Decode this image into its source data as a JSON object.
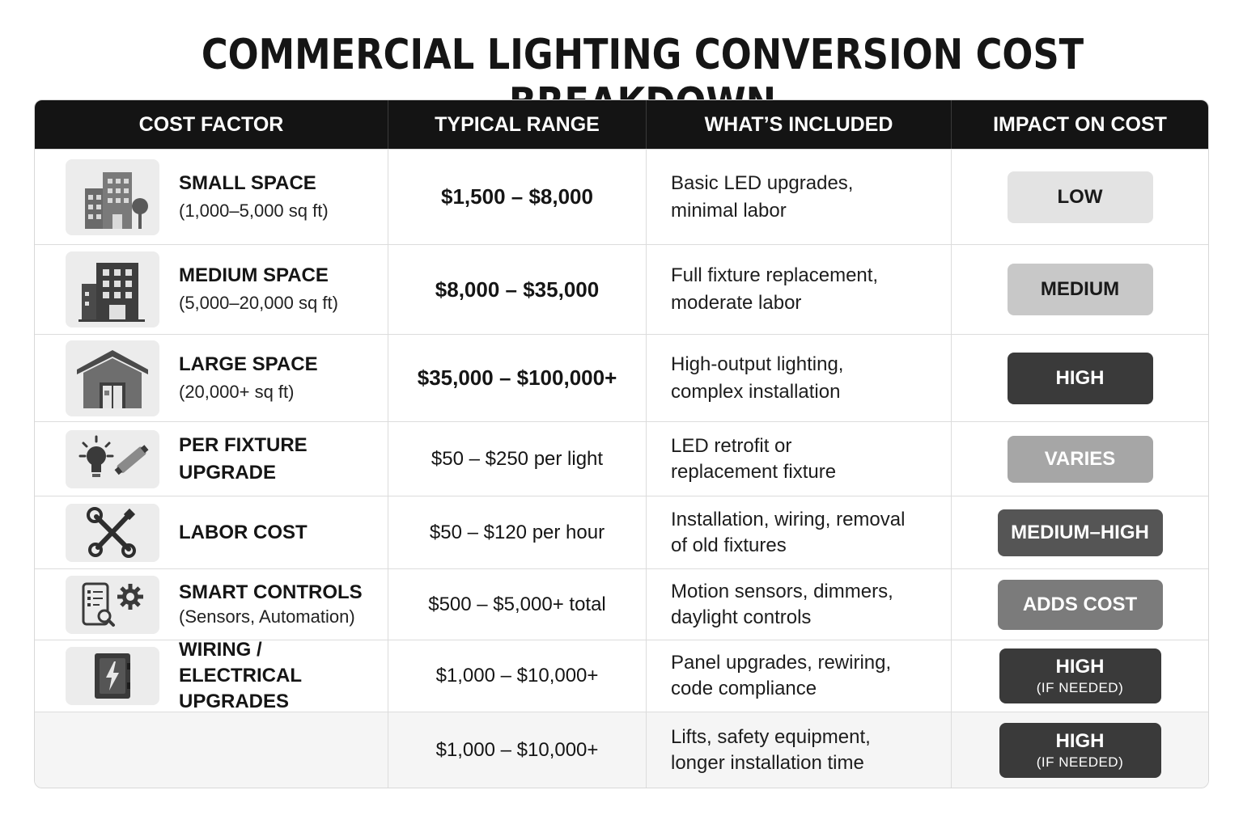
{
  "title": "COMMERCIAL LIGHTING CONVERSION COST BREAKDOWN",
  "headers": [
    "COST FACTOR",
    "TYPICAL RANGE",
    "WHAT’S INCLUDED",
    "IMPACT ON COST"
  ],
  "rows": [
    {
      "icon": "small-buildings-icon",
      "name": "SMALL SPACE",
      "sub": "(1,000–5,000 sq ft)",
      "range": "$1,500 – $8,000",
      "included": [
        "Basic LED upgrades,",
        "minimal labor"
      ],
      "impact": "LOW",
      "impact_sub": ""
    },
    {
      "icon": "office-building-icon",
      "name": "MEDIUM SPACE",
      "sub": "(5,000–20,000 sq ft)",
      "range": "$8,000 – $35,000",
      "included": [
        "Full fixture replacement,",
        "moderate labor"
      ],
      "impact": "MEDIUM",
      "impact_sub": ""
    },
    {
      "icon": "warehouse-icon",
      "name": "LARGE SPACE",
      "sub": "(20,000+ sq ft)",
      "range": "$35,000 – $100,000+",
      "included": [
        "High-output lighting,",
        "complex installation"
      ],
      "impact": "HIGH",
      "impact_sub": ""
    },
    {
      "icon": "lightbulb-tube-icon",
      "name": "PER FIXTURE UPGRADE",
      "sub": "",
      "range": "$50 – $250 per light",
      "included": [
        "LED retrofit or",
        "replacement fixture"
      ],
      "impact": "VARIES",
      "impact_sub": ""
    },
    {
      "icon": "wrench-screwdriver-icon",
      "name": "LABOR COST",
      "sub": "",
      "range": "$50 – $120 per hour",
      "included": [
        "Installation, wiring, removal",
        "of old fixtures"
      ],
      "impact": "MEDIUM–HIGH",
      "impact_sub": ""
    },
    {
      "icon": "smart-controls-icon",
      "name": "SMART CONTROLS",
      "sub": "(Sensors, Automation)",
      "range": "$500 – $5,000+ total",
      "included": [
        "Motion sensors, dimmers,",
        "daylight controls"
      ],
      "impact": "ADDS COST",
      "impact_sub": ""
    },
    {
      "icon": "electrical-panel-icon",
      "name": "WIRING / ELECTRICAL",
      "sub": "UPGRADES",
      "range": "$1,000 – $10,000+",
      "included": [
        "Panel upgrades, rewiring,",
        "code compliance"
      ],
      "impact": "HIGH",
      "impact_sub": "(IF NEEDED)"
    },
    {
      "icon": "",
      "name": "",
      "sub": "",
      "range": "$1,000 – $10,000+",
      "included": [
        "Lifts, safety equipment,",
        "longer installation time"
      ],
      "impact": "HIGH",
      "impact_sub": "(IF NEEDED)"
    }
  ],
  "colors": {
    "header_bg": "#141414",
    "low": "#e3e3e3",
    "medium": "#c8c8c8",
    "high": "#3a3a3a",
    "varies": "#a6a6a6",
    "medium_high": "#555555",
    "adds_cost": "#7b7b7b"
  }
}
